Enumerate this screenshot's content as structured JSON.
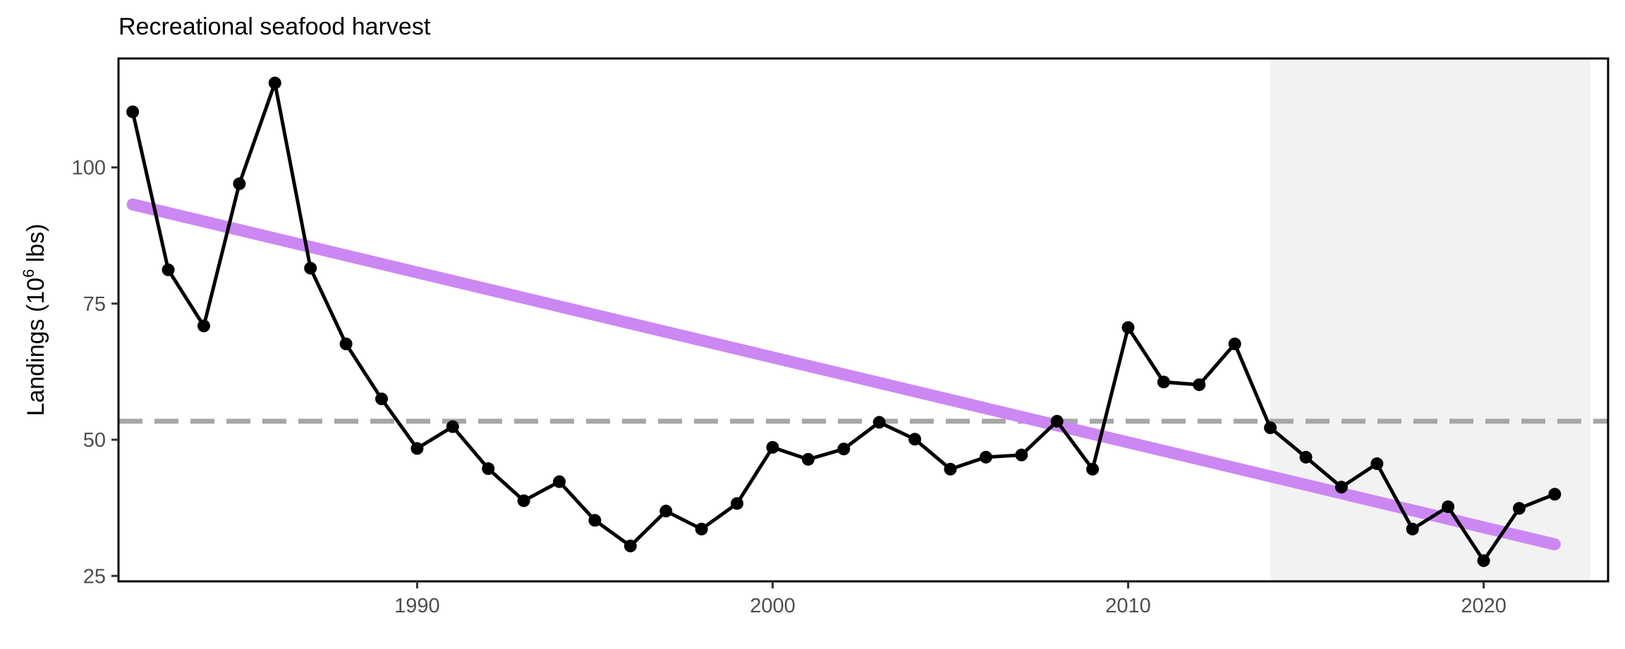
{
  "chart_data": {
    "type": "line",
    "title": "Recreational seafood harvest",
    "ylabel_main": "Landings (10",
    "ylabel_sup": "6",
    "ylabel_tail": " lbs)",
    "xlabel": "",
    "xlim": [
      1981.6,
      2023.5
    ],
    "ylim": [
      24,
      120
    ],
    "x_ticks": [
      1990,
      2000,
      2010,
      2020
    ],
    "y_ticks": [
      25,
      50,
      75,
      100
    ],
    "grid": false,
    "legend": "none",
    "series": [
      {
        "x": [
          1982,
          1983,
          1984,
          1985,
          1986,
          1987,
          1988,
          1989,
          1990,
          1991,
          1992,
          1993,
          1994,
          1995,
          1996,
          1997,
          1998,
          1999,
          2000,
          2001,
          2002,
          2003,
          2004,
          2005,
          2006,
          2007,
          2008,
          2009,
          2010,
          2011,
          2012,
          2013,
          2014,
          2015,
          2016,
          2017,
          2018,
          2019,
          2020,
          2021,
          2022
        ],
        "values": [
          110.2,
          81.2,
          70.9,
          97.0,
          115.5,
          81.5,
          67.6,
          57.5,
          48.4,
          52.4,
          44.7,
          38.8,
          42.3,
          35.2,
          30.5,
          36.9,
          33.6,
          38.3,
          48.6,
          46.4,
          48.3,
          53.2,
          50.1,
          44.6,
          46.8,
          47.2,
          53.4,
          44.6,
          70.6,
          60.6,
          60.1,
          67.6,
          52.2,
          46.8,
          41.3,
          45.6,
          33.6,
          37.7,
          27.8,
          37.4,
          40.0
        ],
        "color": "#000000"
      }
    ],
    "trend": {
      "x": [
        1982,
        2022
      ],
      "values": [
        93.2,
        30.8
      ],
      "color": "#cc88f2"
    },
    "mean_line": {
      "value": 53.4,
      "color": "#a6a6a6",
      "style": "dashed"
    },
    "shaded_region": {
      "x": [
        2014,
        2023
      ],
      "color": "#f2f2f2"
    }
  }
}
